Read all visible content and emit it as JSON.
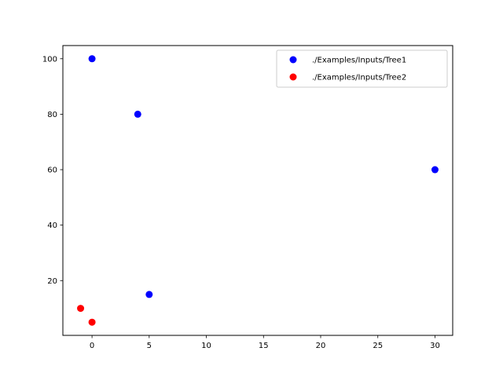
{
  "chart_data": {
    "type": "scatter",
    "title": "",
    "xlabel": "",
    "ylabel": "",
    "xlim": [
      -2.55,
      31.55
    ],
    "ylim": [
      0.25,
      104.75
    ],
    "xticks": [
      0,
      5,
      10,
      15,
      20,
      25,
      30
    ],
    "yticks": [
      20,
      40,
      60,
      80,
      100
    ],
    "grid": false,
    "legend": {
      "placement": "upper right"
    },
    "series": [
      {
        "name": "./Examples/Inputs/Tree1",
        "color": "#0000ff",
        "points": [
          {
            "x": 0,
            "y": 100
          },
          {
            "x": 4,
            "y": 80
          },
          {
            "x": 30,
            "y": 60
          },
          {
            "x": 5,
            "y": 15
          }
        ]
      },
      {
        "name": "./Examples/Inputs/Tree2",
        "color": "#ff0000",
        "points": [
          {
            "x": -1,
            "y": 10
          },
          {
            "x": 0,
            "y": 5
          }
        ]
      }
    ]
  }
}
